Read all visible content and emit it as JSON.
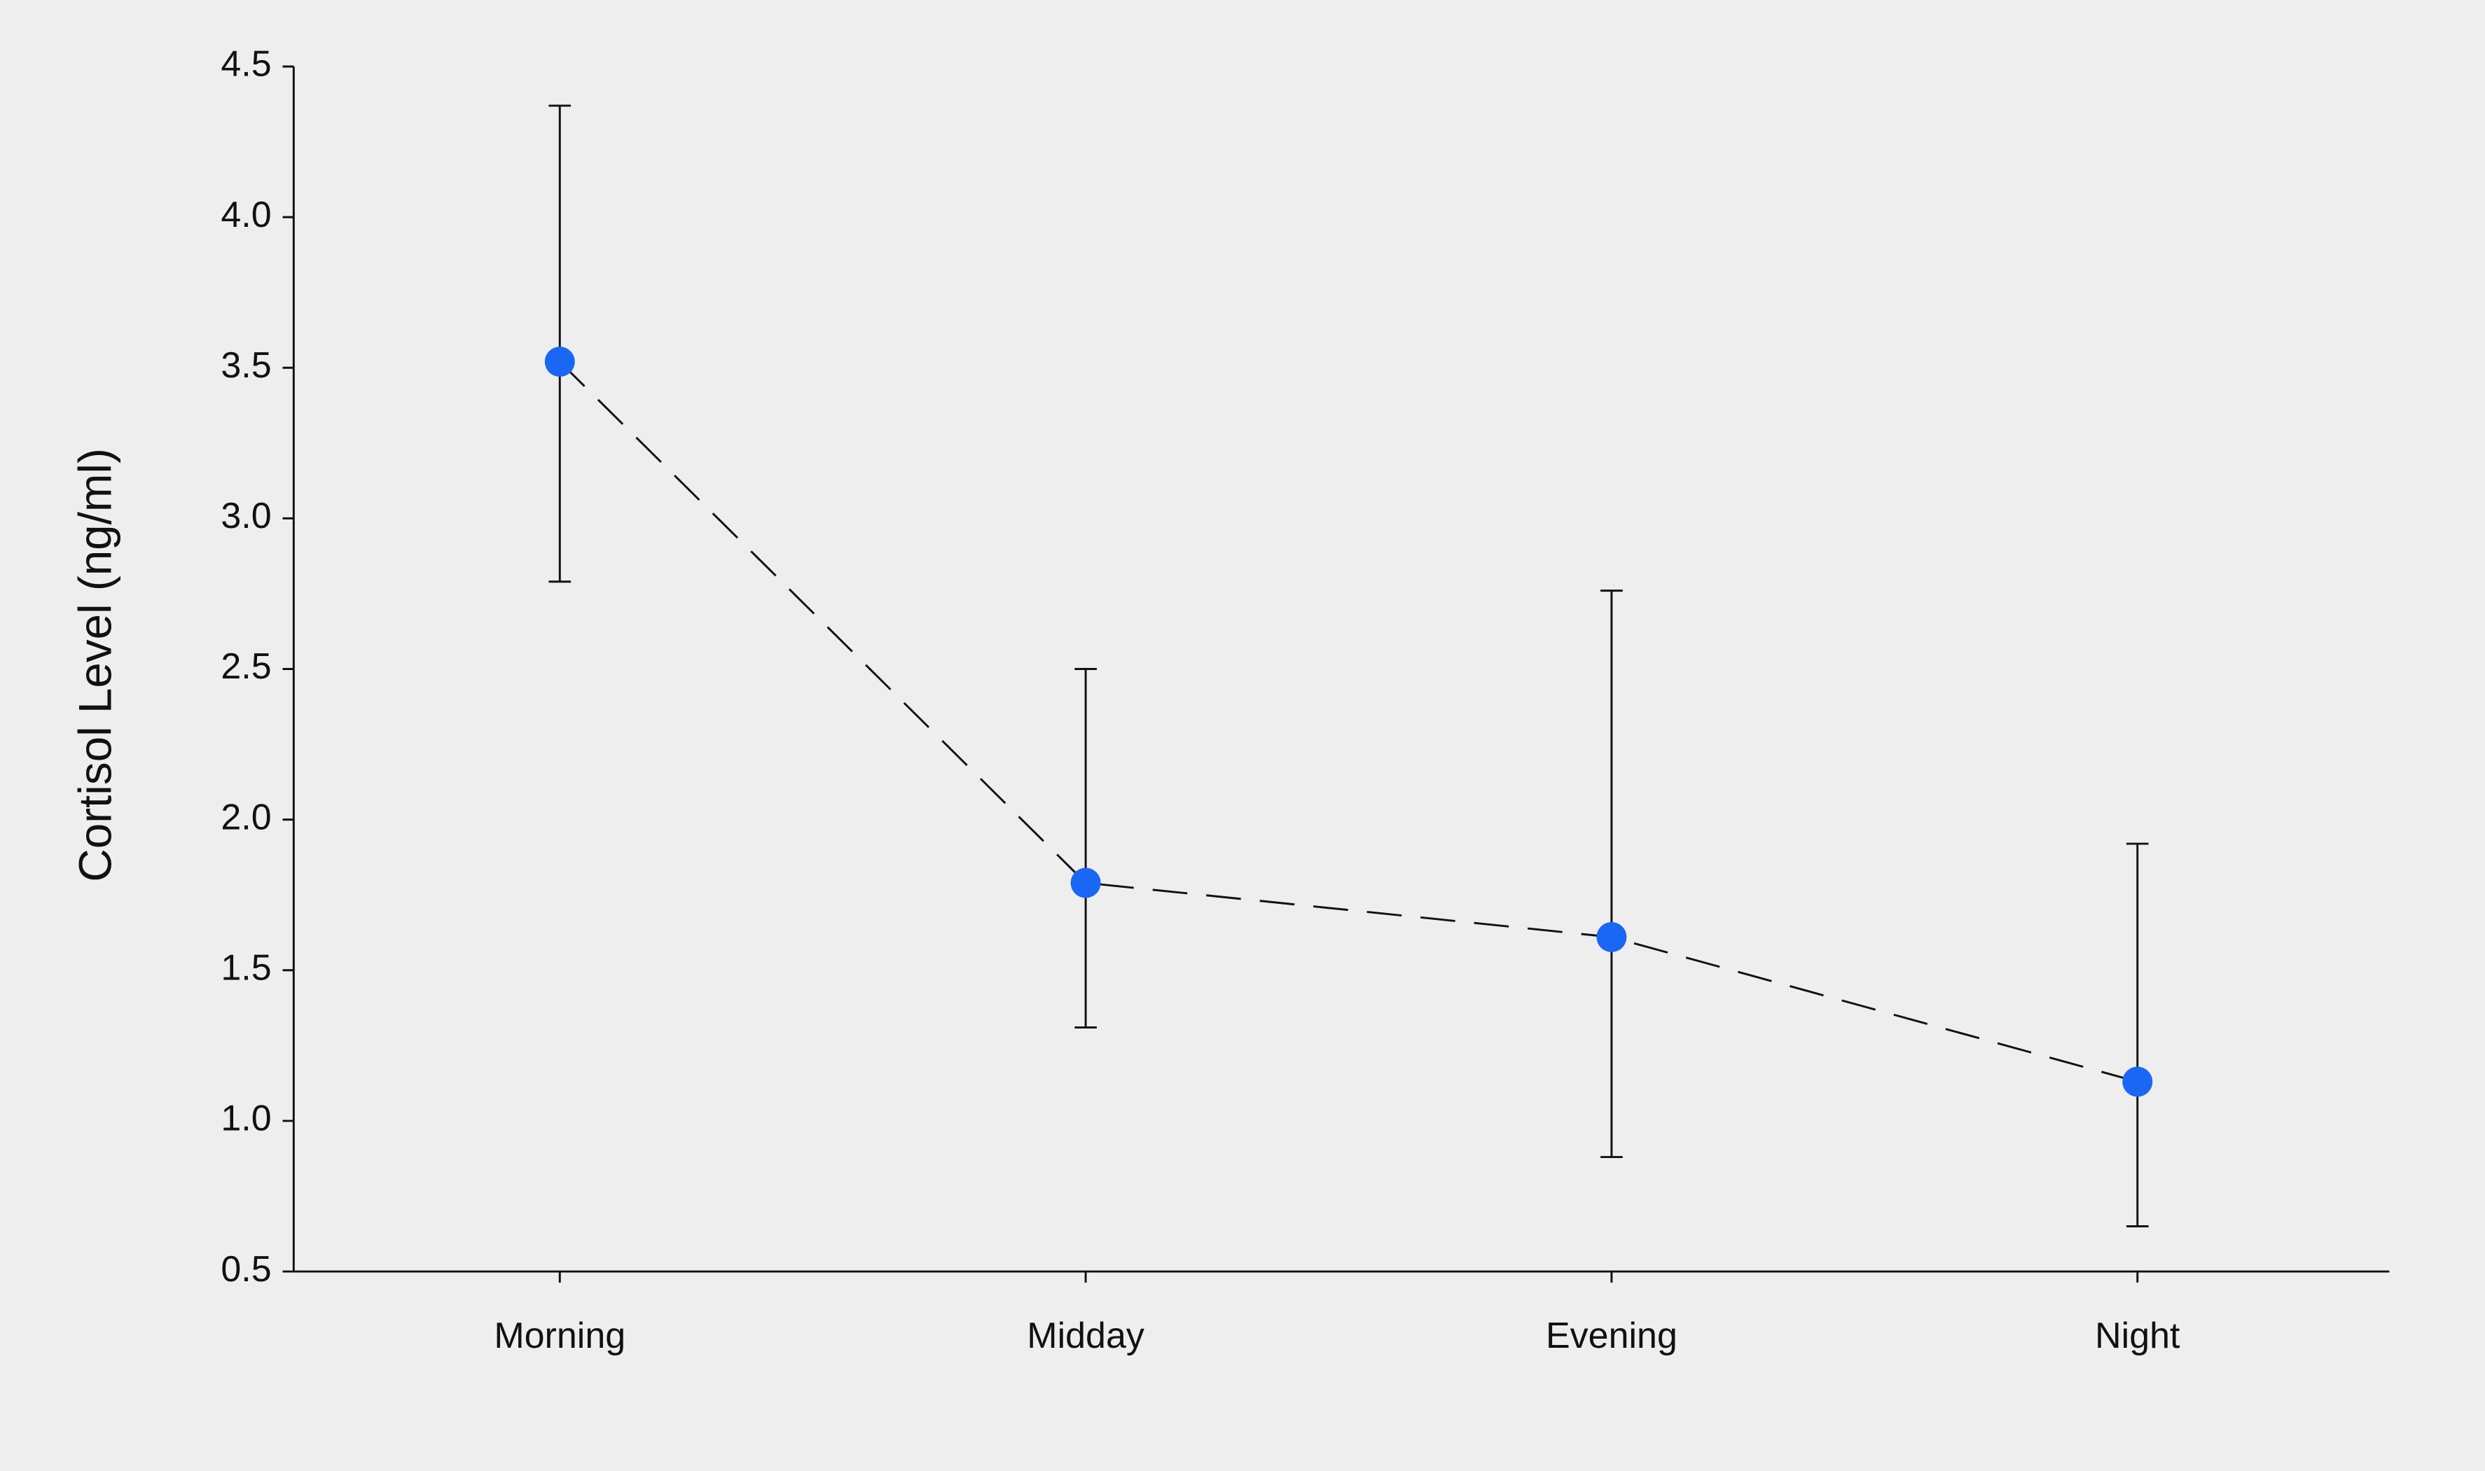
{
  "chart_data": {
    "type": "line",
    "ylabel": "Cortisol Level (ng/ml)",
    "categories": [
      "Morning",
      "Midday",
      "Evening",
      "Night"
    ],
    "series": [
      {
        "color": "#1a66f5",
        "values": [
          3.52,
          1.79,
          1.61,
          1.13
        ],
        "error_minus": [
          0.73,
          0.48,
          0.73,
          0.48
        ],
        "error_plus": [
          0.85,
          0.71,
          1.15,
          0.79
        ]
      }
    ],
    "line_color": "#111111",
    "line_style": "dashed",
    "ylim": [
      0.5,
      4.5
    ],
    "yticks": [
      0.5,
      {
        "value": 1,
        "label": "1.0"
      },
      1.5,
      {
        "value": 2,
        "label": "2.0"
      },
      2.5,
      {
        "value": 3,
        "label": "3.0"
      },
      3.5,
      {
        "value": 4,
        "label": "4.0"
      },
      4.5
    ],
    "grid": false
  }
}
